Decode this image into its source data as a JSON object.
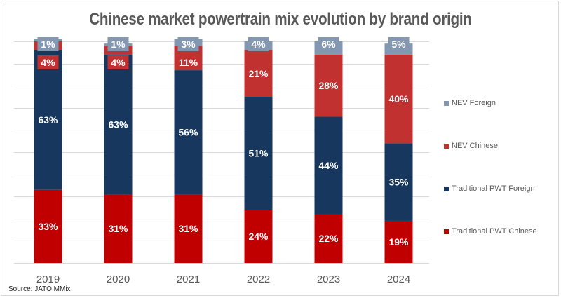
{
  "chart_data": {
    "type": "bar",
    "stacked": true,
    "percent_stacked": true,
    "title": "Chinese market powertrain mix evolution by brand origin",
    "xlabel": "",
    "ylabel": "",
    "ylim": [
      0,
      100
    ],
    "grid": true,
    "categories": [
      "2019",
      "2020",
      "2021",
      "2022",
      "2023",
      "2024"
    ],
    "series": [
      {
        "name": "Traditional PWT Chinese",
        "color": "#C00000",
        "values": [
          33,
          31,
          31,
          24,
          22,
          19
        ],
        "labels": [
          "33%",
          "31%",
          "31%",
          "24%",
          "22%",
          "19%"
        ]
      },
      {
        "name": "Traditional PWT Foreign",
        "color": "#17375E",
        "values": [
          63,
          63,
          56,
          51,
          44,
          35
        ],
        "labels": [
          "63%",
          "63%",
          "56%",
          "51%",
          "44%",
          "35%"
        ]
      },
      {
        "name": "NEV Chinese",
        "color": "#C0312F",
        "values": [
          4,
          4,
          11,
          21,
          28,
          40
        ],
        "labels": [
          "4%",
          "4%",
          "11%",
          "21%",
          "28%",
          "40%"
        ]
      },
      {
        "name": "NEV Foreign",
        "color": "#8497B0",
        "values": [
          1,
          1,
          3,
          4,
          6,
          5
        ],
        "labels": [
          "1%",
          "1%",
          "3%",
          "4%",
          "6%",
          "5%"
        ]
      }
    ],
    "legend": {
      "position": "right",
      "order": [
        "NEV Foreign",
        "NEV Chinese",
        "Traditional PWT Foreign",
        "Traditional PWT Chinese"
      ]
    },
    "source": "Source: JATO MMix"
  }
}
